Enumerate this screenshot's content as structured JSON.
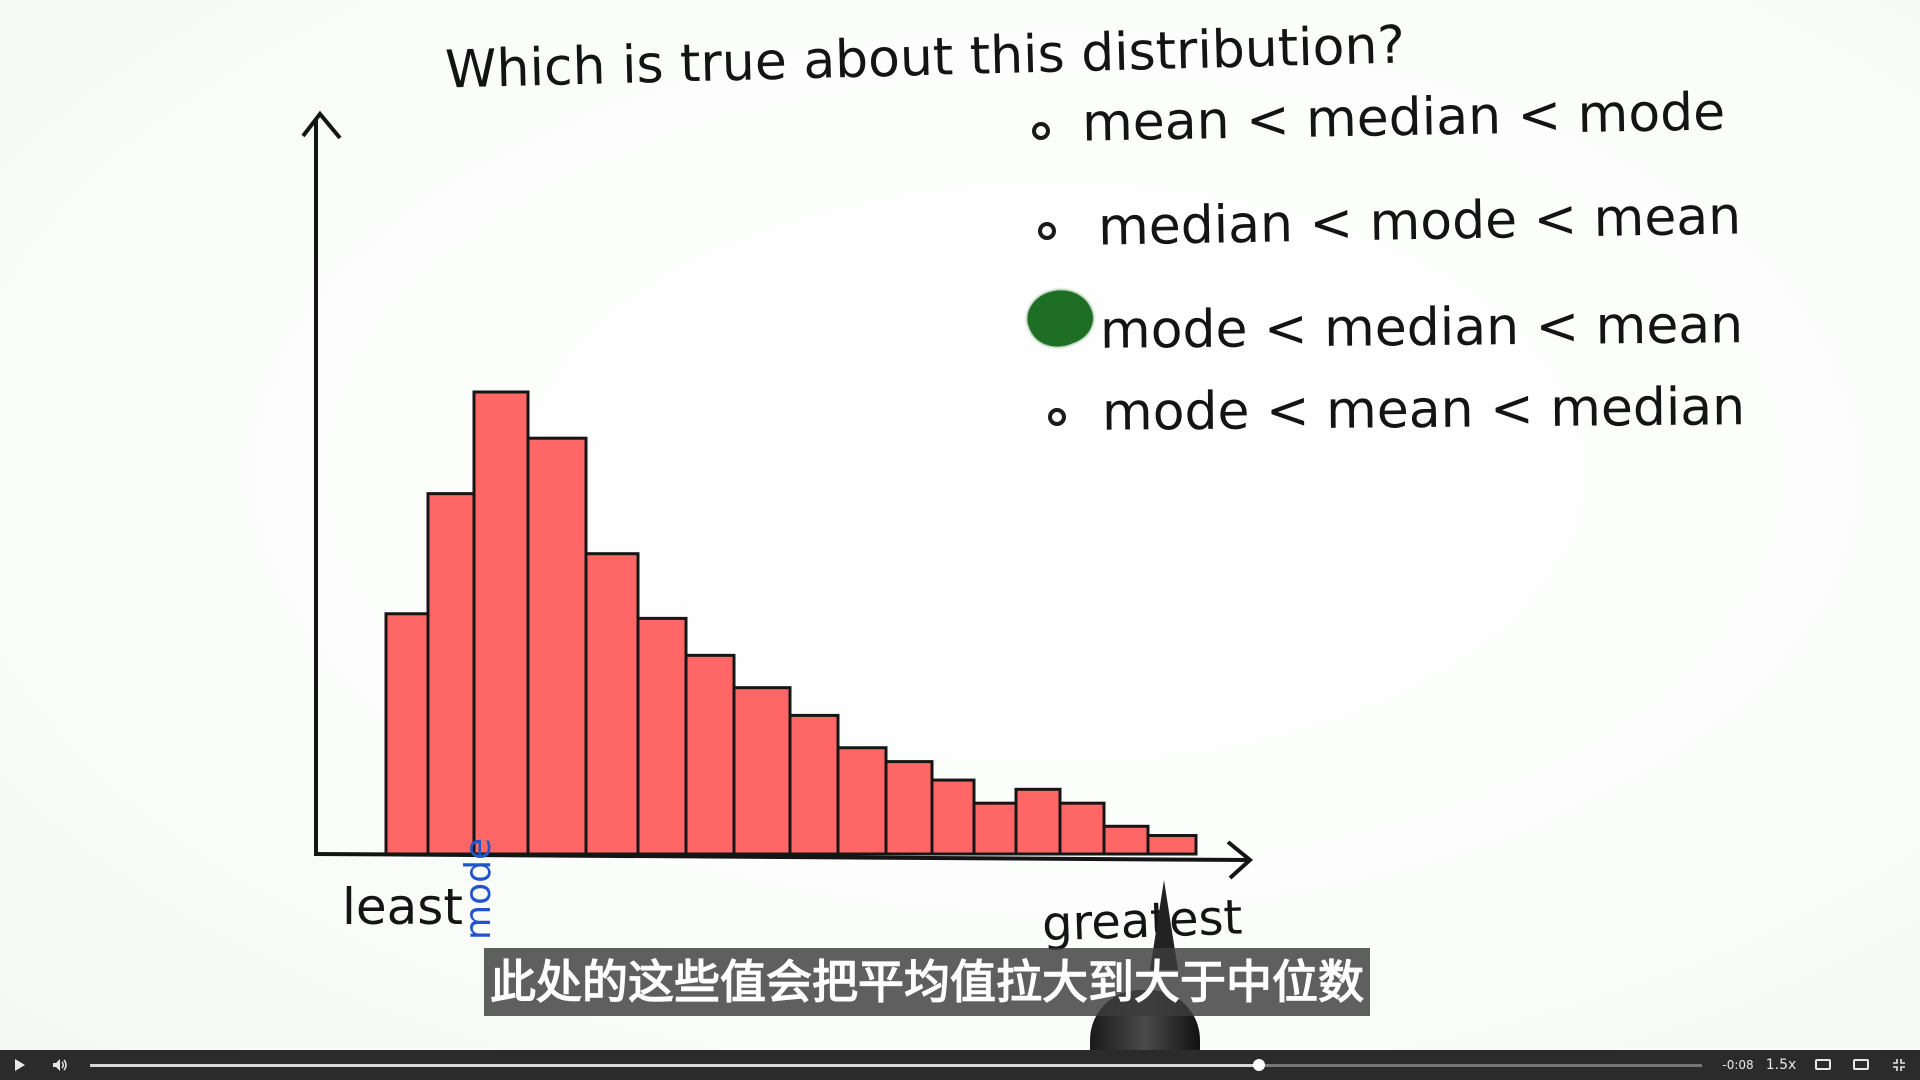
{
  "whiteboard": {
    "question": "Which is true about this distribution?",
    "options": [
      {
        "label": "mean < median < mode",
        "selected": false
      },
      {
        "label": "median < mode < mean",
        "selected": false
      },
      {
        "label": "mode < median < mean",
        "selected": true
      },
      {
        "label": "mode < mean < median",
        "selected": false
      }
    ],
    "check_color": "#1f6e25",
    "bar_color": "#ff6666",
    "axis_labels": {
      "left": "least",
      "right": "greatest",
      "peak": "mode"
    },
    "peak_label_color": "#2255cc"
  },
  "histogram": {
    "bar_relative_heights": [
      0.52,
      0.78,
      1.0,
      0.9,
      0.65,
      0.51,
      0.43,
      0.36,
      0.3,
      0.23,
      0.2,
      0.16,
      0.11,
      0.14,
      0.11,
      0.06,
      0.04
    ]
  },
  "subtitle": "此处的这些值会把平均值拉大到大于中位数",
  "player": {
    "play_icon": "play-icon",
    "volume_icon": "volume-icon",
    "progress_fraction": 0.725,
    "time_remaining": "-0:08",
    "speed": "1.5x",
    "captions_icon": "captions-icon",
    "pip_icon": "picture-in-picture-icon",
    "fullscreen_icon": "fullscreen-icon"
  }
}
